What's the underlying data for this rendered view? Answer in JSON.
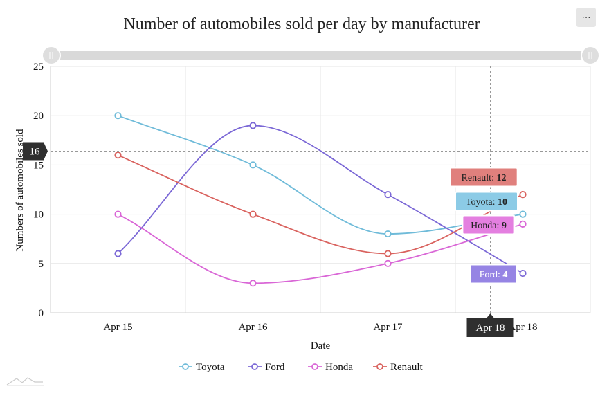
{
  "menu": {
    "label": "···"
  },
  "chart_data": {
    "type": "line",
    "title": "Number of automobiles sold per day by manufacturer",
    "xlabel": "Date",
    "ylabel": "Numbers of automobiles sold",
    "ylim": [
      0,
      25
    ],
    "yticks": [
      0,
      5,
      10,
      15,
      20,
      25
    ],
    "categories": [
      "Apr 15",
      "Apr 16",
      "Apr 17",
      "Apr 18"
    ],
    "series": [
      {
        "name": "Toyota",
        "color": "#6fbbd9",
        "values": [
          20,
          15,
          8,
          10
        ]
      },
      {
        "name": "Ford",
        "color": "#7b68d6",
        "values": [
          6,
          19,
          12,
          4
        ]
      },
      {
        "name": "Honda",
        "color": "#d966d6",
        "values": [
          10,
          3,
          5,
          9
        ]
      },
      {
        "name": "Renault",
        "color": "#d9625e",
        "values": [
          16,
          10,
          6,
          12
        ]
      }
    ],
    "grid": true,
    "legend": "bottom",
    "crosshair": {
      "x_label": "Apr 18",
      "y_label": "16"
    },
    "tooltips": [
      {
        "series": "Renault",
        "label": "Renault: ",
        "value": "12",
        "bg": "#e0807d",
        "fg": "#222222"
      },
      {
        "series": "Toyota",
        "label": "Toyota: ",
        "value": "10",
        "bg": "#8ccbe6",
        "fg": "#222222"
      },
      {
        "series": "Honda",
        "label": "Honda: ",
        "value": "9",
        "bg": "#e47fe0",
        "fg": "#222222"
      },
      {
        "series": "Ford",
        "label": "Ford: ",
        "value": "4",
        "bg": "#9684e4",
        "fg": "#ffffff"
      }
    ]
  }
}
